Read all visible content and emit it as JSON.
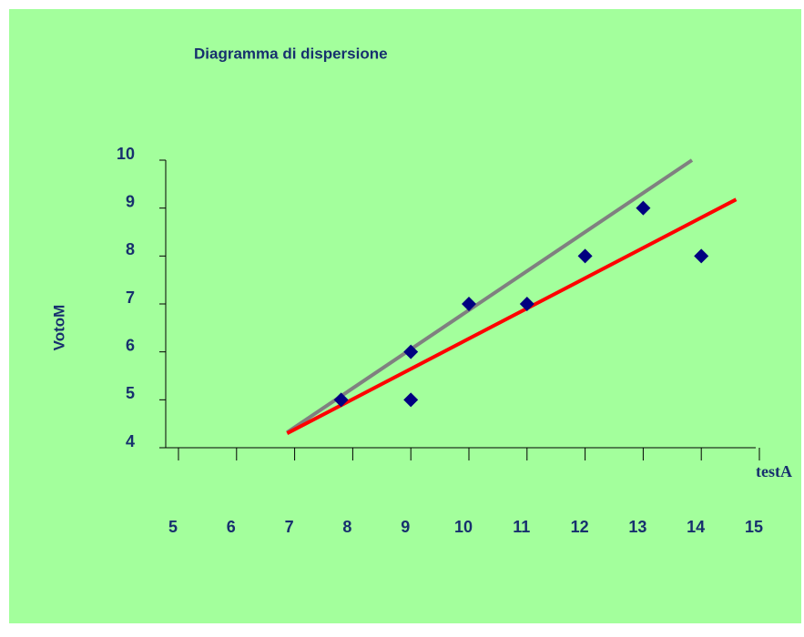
{
  "chart_data": {
    "type": "scatter",
    "title": "Diagramma di dispersione",
    "xlabel": "testA",
    "ylabel": "VotoM",
    "xlim": [
      5,
      15
    ],
    "ylim": [
      4,
      10
    ],
    "xticks": [
      5,
      6,
      7,
      8,
      9,
      10,
      11,
      12,
      13,
      14,
      15
    ],
    "yticks": [
      4,
      5,
      6,
      7,
      8,
      9,
      10
    ],
    "background": "#a3ff9c",
    "series": [
      {
        "kind": "line",
        "color": "#808080",
        "x": [
          6.87,
          13.84
        ],
        "values": [
          4.32,
          10.0
        ]
      },
      {
        "kind": "line",
        "color": "#ff0000",
        "x": [
          6.87,
          14.6
        ],
        "values": [
          4.3,
          9.18
        ]
      },
      {
        "kind": "points",
        "color": "#000080",
        "x": [
          7.8,
          9,
          9,
          10,
          11,
          12,
          13,
          14
        ],
        "values": [
          5,
          6,
          5,
          7,
          7,
          8,
          9,
          8
        ]
      }
    ]
  }
}
